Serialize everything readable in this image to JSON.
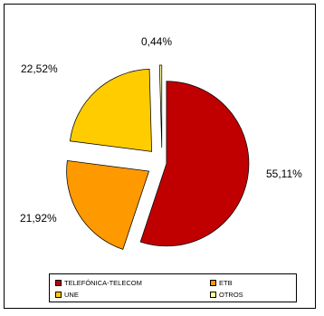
{
  "chart_data": {
    "type": "pie",
    "title": "",
    "slices": [
      {
        "name": "TELEFÓNICA-TELECOM",
        "value": 55.11,
        "label": "55,11%",
        "color": "#C00000"
      },
      {
        "name": "ETB",
        "value": 21.92,
        "label": "21,92%",
        "color": "#FF9900"
      },
      {
        "name": "UNE",
        "value": 22.52,
        "label": "22,52%",
        "color": "#FFCC00"
      },
      {
        "name": "OTROS",
        "value": 0.44,
        "label": "0,44%",
        "color": "#FFFF99"
      }
    ],
    "exploded": true,
    "legend_position": "bottom"
  },
  "legend": {
    "items": [
      {
        "label": "TELEFÓNICA-TELECOM",
        "color": "#C00000"
      },
      {
        "label": "ETB",
        "color": "#FF9900"
      },
      {
        "label": "UNE",
        "color": "#FFCC00"
      },
      {
        "label": "OTROS",
        "color": "#FFFF99"
      }
    ]
  }
}
